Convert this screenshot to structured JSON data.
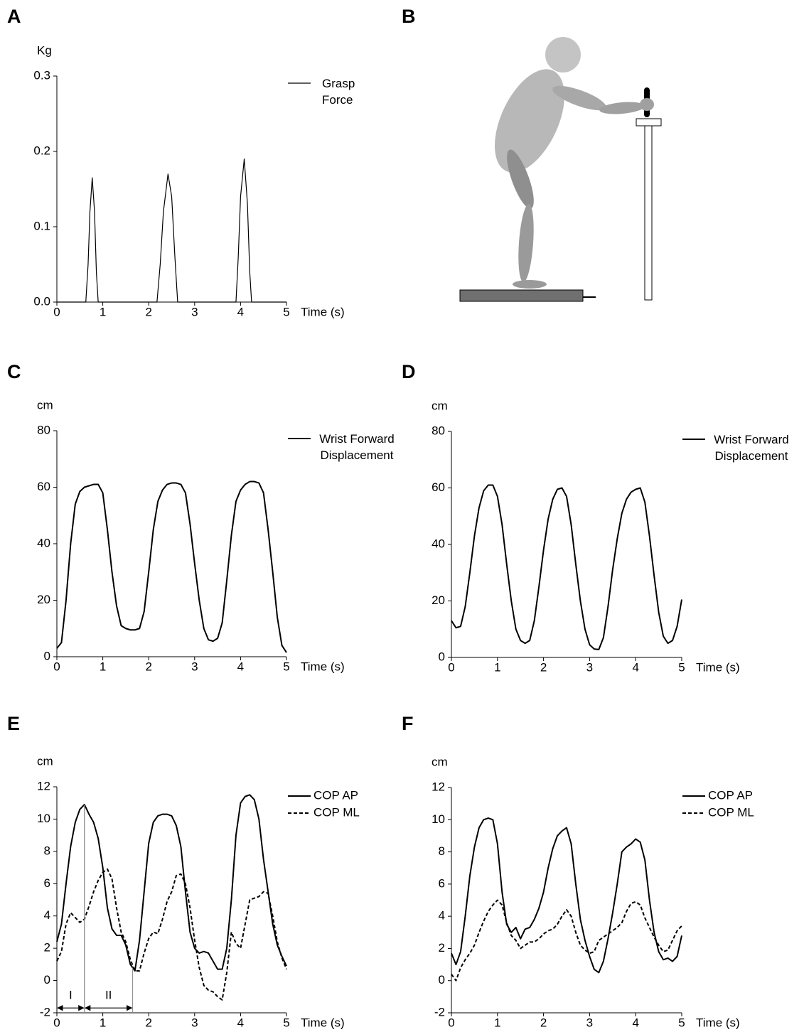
{
  "diagram": {
    "panel": "B"
  },
  "chart_data": [
    {
      "type": "line",
      "panel": "A",
      "y_label": "Kg",
      "x_label": "Time (s)",
      "xlim": [
        0,
        5
      ],
      "xticks": [
        0,
        1,
        2,
        3,
        4,
        5
      ],
      "ylim": [
        0,
        0.3
      ],
      "yticks": [
        {
          "value": 0,
          "label": "0.0"
        },
        0.1,
        0.2,
        0.3
      ],
      "x": [
        0,
        0.63,
        0.68,
        0.72,
        0.77,
        0.82,
        0.86,
        0.9,
        2.18,
        2.25,
        2.32,
        2.42,
        2.5,
        2.57,
        2.63,
        3.9,
        3.95,
        4.0,
        4.08,
        4.15,
        4.2,
        4.24,
        5
      ],
      "series": [
        {
          "name": "Grasp Force",
          "color": "#000000",
          "values": [
            0,
            0,
            0.05,
            0.12,
            0.165,
            0.12,
            0.04,
            0,
            0,
            0.05,
            0.12,
            0.17,
            0.14,
            0.06,
            0,
            0,
            0.06,
            0.14,
            0.19,
            0.13,
            0.04,
            0,
            0
          ]
        }
      ]
    },
    {
      "type": "line",
      "panel": "C",
      "y_label": "cm",
      "x_label": "Time (s)",
      "xlim": [
        0,
        5
      ],
      "xticks": [
        0,
        1,
        2,
        3,
        4,
        5
      ],
      "ylim": [
        0,
        80
      ],
      "yticks": [
        0,
        20,
        40,
        60,
        80
      ],
      "x": [
        0,
        0.1,
        0.2,
        0.3,
        0.4,
        0.5,
        0.6,
        0.7,
        0.8,
        0.9,
        1,
        1.1,
        1.2,
        1.3,
        1.4,
        1.5,
        1.6,
        1.7,
        1.8,
        1.9,
        2,
        2.1,
        2.2,
        2.3,
        2.4,
        2.5,
        2.6,
        2.7,
        2.8,
        2.9,
        3,
        3.1,
        3.2,
        3.3,
        3.4,
        3.5,
        3.6,
        3.7,
        3.8,
        3.9,
        4,
        4.1,
        4.2,
        4.3,
        4.4,
        4.5,
        4.6,
        4.7,
        4.8,
        4.9,
        5
      ],
      "series": [
        {
          "name": "Wrist Forward Displacement",
          "color": "#000000",
          "values": [
            3,
            5,
            20,
            40,
            54,
            58.5,
            60,
            60.5,
            61,
            61,
            58,
            45,
            30,
            18,
            11,
            10,
            9.5,
            9.5,
            10,
            16,
            30,
            45,
            55,
            59,
            61,
            61.5,
            61.5,
            61,
            58,
            47,
            33,
            20,
            10,
            6,
            5.5,
            6.5,
            12,
            27,
            43,
            55,
            59,
            61,
            62,
            62,
            61.5,
            58,
            45,
            30,
            14,
            4,
            1.5
          ]
        }
      ]
    },
    {
      "type": "line",
      "panel": "D",
      "y_label": "cm",
      "x_label": "Time (s)",
      "xlim": [
        0,
        5
      ],
      "xticks": [
        0,
        1,
        2,
        3,
        4,
        5
      ],
      "ylim": [
        0,
        80
      ],
      "yticks": [
        0,
        20,
        40,
        60,
        80
      ],
      "x": [
        0,
        0.1,
        0.2,
        0.3,
        0.4,
        0.5,
        0.6,
        0.7,
        0.8,
        0.9,
        1,
        1.1,
        1.2,
        1.3,
        1.4,
        1.5,
        1.6,
        1.7,
        1.8,
        1.9,
        2,
        2.1,
        2.2,
        2.3,
        2.4,
        2.5,
        2.6,
        2.7,
        2.8,
        2.9,
        3,
        3.1,
        3.2,
        3.3,
        3.4,
        3.5,
        3.6,
        3.7,
        3.8,
        3.9,
        4,
        4.1,
        4.2,
        4.3,
        4.4,
        4.5,
        4.6,
        4.7,
        4.8,
        4.9,
        5
      ],
      "series": [
        {
          "name": "Wrist Forward Displacement",
          "color": "#000000",
          "values": [
            13,
            10.5,
            11,
            18,
            30,
            43,
            53,
            59,
            61,
            61,
            57,
            47,
            33,
            20,
            10,
            6,
            5,
            6,
            13,
            25,
            38,
            49,
            56,
            59.5,
            60,
            57,
            47,
            33,
            20,
            10,
            4.5,
            3,
            2.8,
            7,
            18,
            31,
            42,
            51,
            56,
            58.5,
            59.5,
            60,
            55,
            43,
            29,
            16,
            7.5,
            5,
            6,
            11,
            20.5
          ]
        }
      ]
    },
    {
      "type": "line",
      "panel": "E",
      "y_label": "cm",
      "x_label": "Time (s)",
      "xlim": [
        0,
        5
      ],
      "xticks": [
        0,
        1,
        2,
        3,
        4,
        5
      ],
      "ylim": [
        -2,
        12
      ],
      "yticks": [
        -2,
        0,
        2,
        4,
        6,
        8,
        10,
        12
      ],
      "x": [
        0,
        0.1,
        0.2,
        0.3,
        0.4,
        0.5,
        0.6,
        0.7,
        0.8,
        0.9,
        1,
        1.1,
        1.2,
        1.3,
        1.4,
        1.5,
        1.6,
        1.7,
        1.8,
        1.9,
        2,
        2.1,
        2.2,
        2.3,
        2.4,
        2.5,
        2.6,
        2.7,
        2.8,
        2.9,
        3,
        3.1,
        3.2,
        3.3,
        3.4,
        3.5,
        3.6,
        3.7,
        3.8,
        3.9,
        4,
        4.1,
        4.2,
        4.3,
        4.4,
        4.5,
        4.6,
        4.7,
        4.8,
        4.9,
        5
      ],
      "series": [
        {
          "name": "COP AP",
          "color": "#000000",
          "style": "solid",
          "values": [
            2.4,
            3.5,
            6,
            8.3,
            9.8,
            10.6,
            10.9,
            10.3,
            9.8,
            8.8,
            7,
            4.5,
            3.2,
            2.8,
            2.8,
            2.2,
            1,
            0.6,
            2.5,
            5.5,
            8.5,
            9.8,
            10.2,
            10.3,
            10.3,
            10.2,
            9.6,
            8.3,
            5.5,
            3,
            2,
            1.7,
            1.8,
            1.7,
            1.2,
            0.7,
            0.7,
            2,
            5,
            9,
            11,
            11.4,
            11.5,
            11.2,
            10,
            7.5,
            5.5,
            3.5,
            2.2,
            1.5,
            0.9
          ]
        },
        {
          "name": "COP ML",
          "color": "#000000",
          "style": "dashed",
          "values": [
            1.2,
            1.8,
            3.5,
            4.2,
            3.9,
            3.6,
            3.8,
            4.6,
            5.5,
            6.2,
            6.7,
            6.9,
            6.3,
            4.5,
            3,
            2.4,
            1.3,
            0.6,
            0.6,
            1.7,
            2.6,
            3,
            2.9,
            3.8,
            4.9,
            5.5,
            6.5,
            6.6,
            6,
            4.5,
            2.5,
            0.8,
            -0.3,
            -0.6,
            -0.7,
            -1,
            -1.2,
            0.5,
            3,
            2.3,
            2,
            3.5,
            5,
            5.1,
            5.2,
            5.5,
            5.4,
            4,
            2.4,
            1.4,
            0.7
          ]
        }
      ],
      "annotations": [
        {
          "text": "I",
          "x": [
            0,
            0.6
          ],
          "y": -1.7
        },
        {
          "text": "II",
          "x": [
            0.6,
            1.65
          ],
          "y": -1.7
        }
      ]
    },
    {
      "type": "line",
      "panel": "F",
      "y_label": "cm",
      "x_label": "Time (s)",
      "xlim": [
        0,
        5
      ],
      "xticks": [
        0,
        1,
        2,
        3,
        4,
        5
      ],
      "ylim": [
        -2,
        12
      ],
      "yticks": [
        -2,
        0,
        2,
        4,
        6,
        8,
        10,
        12
      ],
      "x": [
        0,
        0.1,
        0.2,
        0.3,
        0.4,
        0.5,
        0.6,
        0.7,
        0.8,
        0.9,
        1,
        1.1,
        1.2,
        1.3,
        1.4,
        1.5,
        1.6,
        1.7,
        1.8,
        1.9,
        2,
        2.1,
        2.2,
        2.3,
        2.4,
        2.5,
        2.6,
        2.7,
        2.8,
        2.9,
        3,
        3.1,
        3.2,
        3.3,
        3.4,
        3.5,
        3.6,
        3.7,
        3.8,
        3.9,
        4,
        4.1,
        4.2,
        4.3,
        4.4,
        4.5,
        4.6,
        4.7,
        4.8,
        4.9,
        5
      ],
      "series": [
        {
          "name": "COP AP",
          "color": "#000000",
          "style": "solid",
          "values": [
            1.7,
            1,
            1.8,
            4,
            6.5,
            8.3,
            9.5,
            10,
            10.1,
            10,
            8.5,
            5.5,
            3.5,
            3,
            3.3,
            2.6,
            3.2,
            3.3,
            3.8,
            4.5,
            5.5,
            7,
            8.2,
            9,
            9.3,
            9.5,
            8.5,
            6,
            3.8,
            2.5,
            1.5,
            0.7,
            0.5,
            1.2,
            2.6,
            4.2,
            6,
            8,
            8.3,
            8.5,
            8.8,
            8.6,
            7.5,
            5,
            3,
            1.8,
            1.3,
            1.4,
            1.2,
            1.5,
            2.8
          ]
        },
        {
          "name": "COP ML",
          "color": "#000000",
          "style": "dashed",
          "values": [
            0.4,
            0,
            0.8,
            1.3,
            1.7,
            2.2,
            3,
            3.7,
            4.3,
            4.7,
            5,
            4.7,
            3.6,
            2.8,
            2.5,
            2,
            2.2,
            2.4,
            2.4,
            2.6,
            2.9,
            3.1,
            3.2,
            3.5,
            4,
            4.4,
            4,
            3,
            2.2,
            1.9,
            1.7,
            1.8,
            2.5,
            2.7,
            2.9,
            3.1,
            3.3,
            3.6,
            4.3,
            4.8,
            4.9,
            4.7,
            3.9,
            3.3,
            2.7,
            2.2,
            1.8,
            1.9,
            2.5,
            3.1,
            3.4
          ]
        }
      ]
    }
  ]
}
